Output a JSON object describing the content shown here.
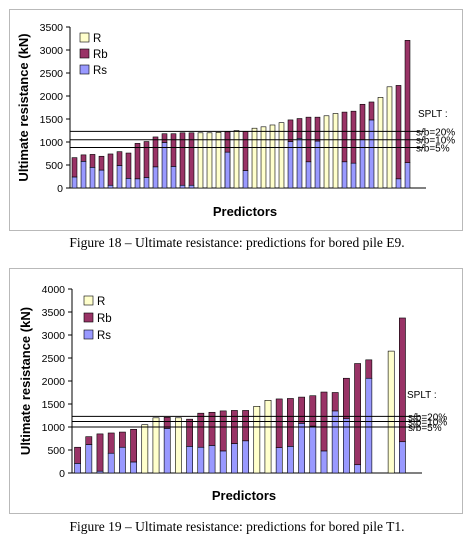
{
  "chart_data": [
    {
      "type": "bar",
      "stacked": true,
      "ylabel": "Ultimate resistance (kN)",
      "xlabel": "Predictors",
      "ylim": [
        0,
        3500
      ],
      "yticks": [
        "0",
        "500",
        "1000",
        "1500",
        "2000",
        "2500",
        "3000",
        "3500"
      ],
      "legend": {
        "placement": "top-left",
        "items": [
          "R",
          "Rb",
          "Rs"
        ]
      },
      "colors": {
        "R": "#ffffcc",
        "Rb": "#993366",
        "Rs": "#9999ff"
      },
      "series": [
        {
          "name": "R",
          "values": [
            null,
            null,
            null,
            null,
            null,
            null,
            null,
            null,
            null,
            null,
            null,
            null,
            null,
            null,
            1200,
            1200,
            1210,
            1230,
            1250,
            null,
            1300,
            1330,
            1370,
            1420,
            null,
            null,
            null,
            null,
            1570,
            1620,
            null,
            null,
            null,
            null,
            1970,
            2200,
            null,
            null
          ]
        },
        {
          "name": "Rs",
          "values": [
            240,
            580,
            450,
            390,
            60,
            490,
            210,
            200,
            230,
            460,
            990,
            470,
            60,
            60,
            null,
            null,
            null,
            780,
            null,
            380,
            null,
            null,
            null,
            null,
            1010,
            1080,
            570,
            1020,
            null,
            null,
            570,
            540,
            1050,
            1480,
            null,
            null,
            200,
            550
          ]
        },
        {
          "name": "Rb",
          "values": [
            420,
            140,
            280,
            300,
            680,
            300,
            550,
            770,
            780,
            650,
            190,
            710,
            1140,
            1140,
            null,
            null,
            null,
            440,
            null,
            850,
            null,
            null,
            null,
            null,
            470,
            430,
            970,
            520,
            null,
            null,
            1080,
            1130,
            770,
            390,
            null,
            null,
            2030,
            2660
          ]
        }
      ],
      "reference_lines": [
        {
          "label": "s/b=20%",
          "value": 1230
        },
        {
          "label": "s/b=10%",
          "value": 1050
        },
        {
          "label": "s/b=5%",
          "value": 880
        }
      ],
      "annotation": "SPLT :"
    },
    {
      "type": "bar",
      "stacked": true,
      "ylabel": "Ultimate resistance (kN)",
      "xlabel": "Predictors",
      "ylim": [
        0,
        4000
      ],
      "yticks": [
        "0",
        "500",
        "1000",
        "1500",
        "2000",
        "2500",
        "3000",
        "3500",
        "4000"
      ],
      "legend": {
        "placement": "top-left",
        "items": [
          "R",
          "Rb",
          "Rs"
        ]
      },
      "colors": {
        "R": "#ffffcc",
        "Rb": "#993366",
        "Rs": "#9999ff"
      },
      "series": [
        {
          "name": "R",
          "values": [
            null,
            null,
            null,
            null,
            null,
            null,
            1050,
            1200,
            null,
            1200,
            null,
            null,
            null,
            null,
            null,
            null,
            1450,
            1580,
            null,
            null,
            null,
            null,
            null,
            null,
            null,
            null,
            null,
            null,
            2650,
            null
          ]
        },
        {
          "name": "Rs",
          "values": [
            210,
            620,
            40,
            430,
            560,
            240,
            null,
            null,
            970,
            null,
            580,
            560,
            600,
            480,
            640,
            700,
            null,
            null,
            550,
            580,
            1080,
            1020,
            480,
            1350,
            1180,
            180,
            2060,
            null,
            null,
            680
          ]
        },
        {
          "name": "Rb",
          "values": [
            350,
            170,
            810,
            440,
            330,
            710,
            null,
            null,
            240,
            null,
            590,
            740,
            720,
            870,
            720,
            660,
            null,
            null,
            1060,
            1040,
            570,
            660,
            1280,
            400,
            880,
            2200,
            400,
            null,
            null,
            2690
          ]
        }
      ],
      "reference_lines": [
        {
          "label": "s/b=20%",
          "value": 1230
        },
        {
          "label": "s/b=10%",
          "value": 1120
        },
        {
          "label": "s/b=5%",
          "value": 1000
        }
      ],
      "annotation": "SPLT :"
    }
  ],
  "captions": {
    "fig18": "Figure 18 – Ultimate resistance: predictions for bored pile E9.",
    "fig19": "Figure 19 – Ultimate resistance: predictions for bored pile T1."
  }
}
